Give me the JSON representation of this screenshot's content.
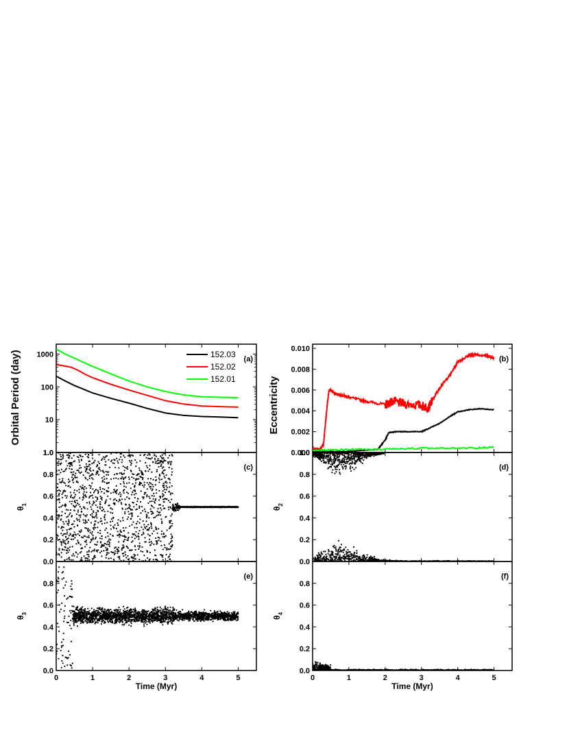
{
  "chart_data": [
    {
      "panel_label": "(a)",
      "type": "line",
      "ylabel": "Orbital Period (day)",
      "yscale": "log",
      "ylim": [
        1,
        2000
      ],
      "yticks": [
        "1.0",
        "10",
        "100",
        "1000"
      ],
      "xlim": [
        0,
        5.5
      ],
      "xticks": [],
      "legend_position": "top-right",
      "series": [
        {
          "name": "152.03",
          "color": "#000000",
          "x": [
            0,
            0.25,
            0.5,
            0.75,
            1,
            1.5,
            2,
            2.5,
            3,
            3.5,
            4,
            4.5,
            5
          ],
          "values": [
            210,
            150,
            110,
            85,
            65,
            45,
            32,
            22,
            16,
            13.5,
            12.5,
            12,
            11.5
          ]
        },
        {
          "name": "152.02",
          "color": "#ff0000",
          "x": [
            0,
            0.2,
            0.4,
            0.6,
            0.8,
            1,
            1.5,
            2,
            2.5,
            3,
            3.5,
            4,
            4.5,
            5
          ],
          "values": [
            480,
            440,
            400,
            320,
            240,
            190,
            120,
            80,
            55,
            38,
            30,
            26,
            25,
            24
          ]
        },
        {
          "name": "152.01",
          "color": "#00ff00",
          "x": [
            0,
            0.25,
            0.5,
            0.75,
            1,
            1.5,
            2,
            2.5,
            3,
            3.5,
            4,
            4.5,
            5
          ],
          "values": [
            1400,
            1000,
            750,
            560,
            420,
            250,
            150,
            100,
            72,
            57,
            50,
            48,
            47
          ]
        }
      ]
    },
    {
      "panel_label": "(b)",
      "type": "line",
      "ylabel": "Eccentricity",
      "ylim": [
        0,
        0.0104
      ],
      "yticks": [
        "0.000",
        "0.002",
        "0.004",
        "0.006",
        "0.008",
        "0.010"
      ],
      "xlim": [
        0,
        5.5
      ],
      "xticks": [],
      "series": [
        {
          "name": "",
          "color": "#ff0000",
          "x": [
            0,
            0.2,
            0.3,
            0.4,
            0.45,
            0.5,
            0.6,
            0.8,
            1,
            1.5,
            2,
            2.2,
            2.5,
            3,
            3.2,
            3.3,
            3.5,
            3.8,
            4,
            4.3,
            4.5,
            4.8,
            5
          ],
          "values": [
            0.0003,
            0.0003,
            0.0008,
            0.0045,
            0.0059,
            0.006,
            0.0057,
            0.0055,
            0.0053,
            0.0049,
            0.0046,
            0.0049,
            0.0047,
            0.0045,
            0.0043,
            0.005,
            0.0062,
            0.0075,
            0.0087,
            0.0093,
            0.0094,
            0.0093,
            0.0091
          ]
        },
        {
          "name": "",
          "color": "#000000",
          "x": [
            0,
            1,
            1.8,
            2,
            2.1,
            2.3,
            2.6,
            3,
            3.2,
            3.5,
            3.8,
            4,
            4.3,
            4.6,
            5
          ],
          "values": [
            0.0001,
            0.0001,
            0.0003,
            0.0012,
            0.0019,
            0.002,
            0.002,
            0.002,
            0.0023,
            0.0028,
            0.0035,
            0.0039,
            0.0041,
            0.0042,
            0.0041
          ]
        },
        {
          "name": "",
          "color": "#00ff00",
          "x": [
            0,
            1,
            2,
            3,
            4,
            5
          ],
          "values": [
            0.0002,
            0.0003,
            0.0003,
            0.0004,
            0.0004,
            0.0005
          ]
        }
      ]
    },
    {
      "panel_label": "(c)",
      "type": "scatter",
      "ylabel": "θ1",
      "ylim": [
        0,
        1
      ],
      "yticks": [
        "0.0",
        "0.2",
        "0.4",
        "0.6",
        "0.8",
        "1.0"
      ],
      "xlim": [
        0,
        5.5
      ],
      "xticks": [],
      "description_points": "uniform scatter 0–1 for t<3.2 Myr, converges to 0.5 after"
    },
    {
      "panel_label": "(d)",
      "type": "scatter",
      "ylabel": "θ2",
      "ylim": [
        0,
        1
      ],
      "yticks": [
        "0.0",
        "0.2",
        "0.4",
        "0.6",
        "0.8",
        "1.0"
      ],
      "xlim": [
        0,
        5.5
      ],
      "xticks": []
    },
    {
      "panel_label": "(e)",
      "type": "scatter",
      "ylabel": "θ3",
      "ylim": [
        0,
        1
      ],
      "yticks": [
        "0.0",
        "0.2",
        "0.4",
        "0.6",
        "0.8"
      ],
      "xlim": [
        0,
        5.5
      ],
      "xticks": [
        "0",
        "1",
        "2",
        "3",
        "4",
        "5"
      ],
      "xlabel": "Time (Myr)"
    },
    {
      "panel_label": "(f)",
      "type": "scatter",
      "ylabel": "θ4",
      "ylim": [
        0,
        1
      ],
      "yticks": [
        "0.0",
        "0.2",
        "0.4",
        "0.6",
        "0.8"
      ],
      "xlim": [
        0,
        5.5
      ],
      "xticks": [
        "0",
        "1",
        "2",
        "3",
        "4",
        "5"
      ],
      "xlabel": "Time (Myr)"
    }
  ]
}
